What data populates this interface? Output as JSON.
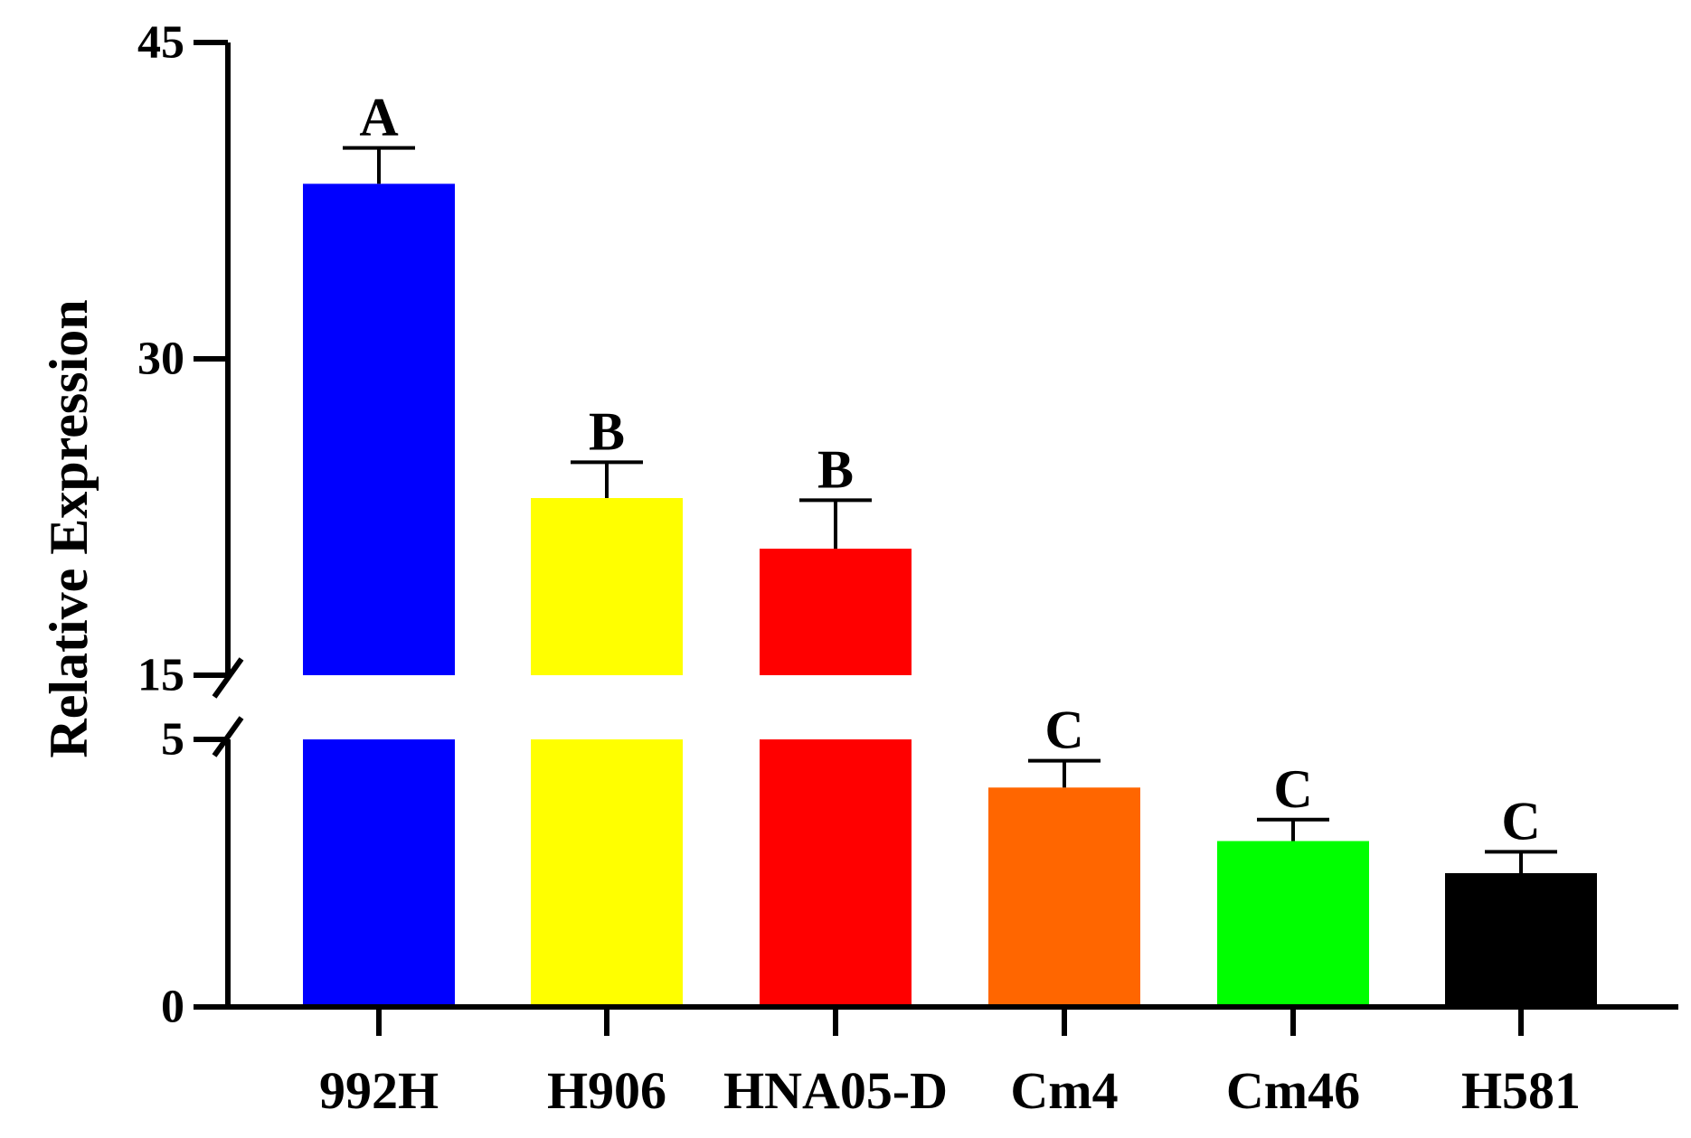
{
  "chart_data": {
    "type": "bar",
    "ylabel": "Relative Expression",
    "xlabel": "",
    "title": "",
    "axis_break": {
      "lower_max": 5,
      "upper_min": 15
    },
    "ylim": [
      0,
      45
    ],
    "ytick_labels": [
      "0",
      "5",
      "15",
      "30",
      "45"
    ],
    "categories": [
      "992H",
      "H906",
      "HNA05-D",
      "Cm4",
      "Cm46",
      "H581"
    ],
    "values": [
      38.3,
      23.4,
      21.0,
      4.1,
      3.1,
      2.5
    ],
    "errors": [
      1.7,
      1.7,
      2.3,
      0.5,
      0.4,
      0.4
    ],
    "significance": [
      "A",
      "B",
      "B",
      "C",
      "C",
      "C"
    ],
    "colors": [
      "#0000ff",
      "#ffff00",
      "#ff0000",
      "#ff6600",
      "#00ff00",
      "#000000"
    ],
    "grid": false
  }
}
